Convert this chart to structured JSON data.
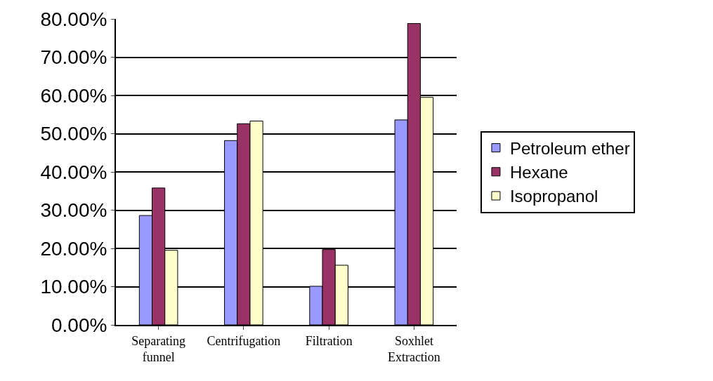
{
  "chart_data": {
    "type": "bar",
    "categories": [
      "Separating funnel",
      "Centrifugation",
      "Filtration",
      "Soxhlet Extraction"
    ],
    "series": [
      {
        "name": "Petroleum ether",
        "color": "#9999ff",
        "values": [
          28.6,
          48.2,
          10.1,
          53.6
        ]
      },
      {
        "name": "Hexane",
        "color": "#993366",
        "values": [
          35.8,
          52.6,
          19.7,
          78.8
        ]
      },
      {
        "name": "Isopropanol",
        "color": "#ffffcc",
        "values": [
          19.5,
          53.3,
          15.6,
          59.5
        ]
      }
    ],
    "ylim": [
      0,
      80
    ],
    "yticks": [
      {
        "value": 0,
        "label": "0.00%"
      },
      {
        "value": 10,
        "label": "10.00%"
      },
      {
        "value": 20,
        "label": "20.00%"
      },
      {
        "value": 30,
        "label": "30.00%"
      },
      {
        "value": 40,
        "label": "40.00%"
      },
      {
        "value": 50,
        "label": "50.00%"
      },
      {
        "value": 60,
        "label": "60.00%"
      },
      {
        "value": 70,
        "label": "70.00%"
      },
      {
        "value": 80,
        "label": "80.00%"
      }
    ],
    "grid": "y",
    "legend": "right"
  }
}
